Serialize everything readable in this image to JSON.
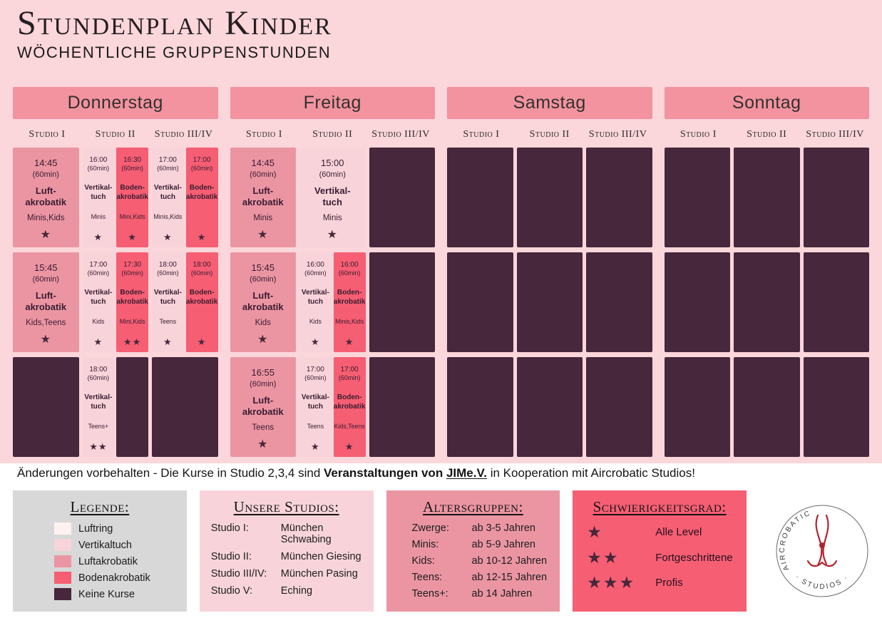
{
  "header": {
    "title": "Stundenplan Kinder",
    "subtitle": "Wöchentliche Gruppenstunden"
  },
  "colors": {
    "page_pink": "#fbd6da",
    "day_header": "#f2939f",
    "luftring": "#fdf2f0",
    "vertikaltuch": "#f8d4da",
    "luftakrobatik": "#eb95a3",
    "bodenakrobatik": "#f65e73",
    "keine_kurse": "#46273b",
    "star": "#46273b",
    "legend_bg": "#d8d8d8"
  },
  "schedule": {
    "days": [
      {
        "name": "Donnerstag",
        "studios": [
          "Studio I",
          "Studio II",
          "Studio III/IV"
        ],
        "rows": [
          {
            "slots": [
              {
                "cells": [
                  {
                    "type": "luftakrobatik",
                    "time": "14:45",
                    "duration": "(60min)",
                    "name": "Luft-\nakrobatik",
                    "group": "Minis,Kids",
                    "stars": 1
                  }
                ]
              },
              {
                "cells": [
                  {
                    "type": "vertikaltuch",
                    "time": "16:00",
                    "duration": "(60min)",
                    "name": "Vertikal-\ntuch",
                    "group": "Minis",
                    "stars": 1
                  },
                  {
                    "type": "bodenakrobatik",
                    "time": "16:30",
                    "duration": "(60min)",
                    "name": "Boden-\nakrobatik",
                    "group": "Mini,Kids",
                    "stars": 1
                  }
                ]
              },
              {
                "cells": [
                  {
                    "type": "vertikaltuch",
                    "time": "17:00",
                    "duration": "(60min)",
                    "name": "Vertikal-\ntuch",
                    "group": "Minis,Kids",
                    "stars": 1
                  },
                  {
                    "type": "bodenakrobatik",
                    "time": "17:00",
                    "duration": "(60min)",
                    "name": "Boden-\nakrobatik",
                    "group": "",
                    "stars": 1
                  }
                ]
              }
            ]
          },
          {
            "slots": [
              {
                "cells": [
                  {
                    "type": "luftakrobatik",
                    "time": "15:45",
                    "duration": "(60min)",
                    "name": "Luft-\nakrobatik",
                    "group": "Kids,Teens",
                    "stars": 1
                  }
                ]
              },
              {
                "cells": [
                  {
                    "type": "vertikaltuch",
                    "time": "17:00",
                    "duration": "(60min)",
                    "name": "Vertikal-\ntuch",
                    "group": "Kids",
                    "stars": 1
                  },
                  {
                    "type": "bodenakrobatik",
                    "time": "17:30",
                    "duration": "(60min)",
                    "name": "Boden-\nakrobatik",
                    "group": "Mini,Kids",
                    "stars": 2
                  }
                ]
              },
              {
                "cells": [
                  {
                    "type": "vertikaltuch",
                    "time": "18:00",
                    "duration": "(60min)",
                    "name": "Vertikal-\ntuch",
                    "group": "Teens",
                    "stars": 1
                  },
                  {
                    "type": "bodenakrobatik",
                    "time": "18:00",
                    "duration": "(60min)",
                    "name": "Boden-\nakrobatik",
                    "group": "",
                    "stars": 1
                  }
                ]
              }
            ]
          },
          {
            "slots": [
              {
                "cells": []
              },
              {
                "cells": [
                  {
                    "type": "vertikaltuch",
                    "time": "18:00",
                    "duration": "(60min)",
                    "name": "Vertikal-\ntuch",
                    "group": "Teens+",
                    "stars": 2
                  },
                  {
                    "empty": true
                  }
                ]
              },
              {
                "cells": []
              }
            ]
          }
        ]
      },
      {
        "name": "Freitag",
        "studios": [
          "Studio I",
          "Studio II",
          "Studio III/IV"
        ],
        "rows": [
          {
            "slots": [
              {
                "cells": [
                  {
                    "type": "luftakrobatik",
                    "time": "14:45",
                    "duration": "(60min)",
                    "name": "Luft-\nakrobatik",
                    "group": "Minis",
                    "stars": 1
                  }
                ]
              },
              {
                "cells": [
                  {
                    "type": "vertikaltuch",
                    "time": "15:00",
                    "duration": "(60min)",
                    "name": "Vertikal-\ntuch",
                    "group": "Minis",
                    "stars": 1
                  }
                ]
              },
              {
                "cells": []
              }
            ]
          },
          {
            "slots": [
              {
                "cells": [
                  {
                    "type": "luftakrobatik",
                    "time": "15:45",
                    "duration": "(60min)",
                    "name": "Luft-\nakrobatik",
                    "group": "Kids",
                    "stars": 1
                  }
                ]
              },
              {
                "cells": [
                  {
                    "type": "vertikaltuch",
                    "time": "16:00",
                    "duration": "(60min)",
                    "name": "Vertikal-\ntuch",
                    "group": "Kids",
                    "stars": 1
                  },
                  {
                    "type": "bodenakrobatik",
                    "time": "16:00",
                    "duration": "(60min)",
                    "name": "Boden-\nakrobatik",
                    "group": "Minis,Kids",
                    "stars": 1
                  }
                ]
              },
              {
                "cells": []
              }
            ]
          },
          {
            "slots": [
              {
                "cells": [
                  {
                    "type": "luftakrobatik",
                    "time": "16:55",
                    "duration": "(60min)",
                    "name": "Luft-\nakrobatik",
                    "group": "Teens",
                    "stars": 1
                  }
                ]
              },
              {
                "cells": [
                  {
                    "type": "vertikaltuch",
                    "time": "17:00",
                    "duration": "(60min)",
                    "name": "Vertikal-\ntuch",
                    "group": "Teens",
                    "stars": 1
                  },
                  {
                    "type": "bodenakrobatik",
                    "time": "17:00",
                    "duration": "(60min)",
                    "name": "Boden-\nakrobatik",
                    "group": "Kids,Teens",
                    "stars": 1
                  }
                ]
              },
              {
                "cells": []
              }
            ]
          }
        ]
      },
      {
        "name": "Samstag",
        "studios": [
          "Studio I",
          "Studio II",
          "Studio III/IV"
        ],
        "rows": [
          {
            "slots": [
              {
                "cells": []
              },
              {
                "cells": []
              },
              {
                "cells": []
              }
            ]
          },
          {
            "slots": [
              {
                "cells": []
              },
              {
                "cells": []
              },
              {
                "cells": []
              }
            ]
          },
          {
            "slots": [
              {
                "cells": []
              },
              {
                "cells": []
              },
              {
                "cells": []
              }
            ]
          }
        ]
      },
      {
        "name": "Sonntag",
        "studios": [
          "Studio I",
          "Studio II",
          "Studio III/IV"
        ],
        "rows": [
          {
            "slots": [
              {
                "cells": []
              },
              {
                "cells": []
              },
              {
                "cells": []
              }
            ]
          },
          {
            "slots": [
              {
                "cells": []
              },
              {
                "cells": []
              },
              {
                "cells": []
              }
            ]
          },
          {
            "slots": [
              {
                "cells": []
              },
              {
                "cells": []
              },
              {
                "cells": []
              }
            ]
          }
        ]
      }
    ]
  },
  "note": {
    "text_before": "Änderungen vorbehalten - Die Kurse in Studio 2,3,4 sind ",
    "bold_text": "Veranstaltungen von ",
    "underlined_text": "JIMe.V.",
    "text_after": " in Kooperation mit Aircrobatic Studios!"
  },
  "legend": {
    "title": "Legende:",
    "items": [
      {
        "label": "Luftring",
        "type": "luftring"
      },
      {
        "label": "Vertikaltuch",
        "type": "vertikaltuch"
      },
      {
        "label": "Luftakrobatik",
        "type": "luftakrobatik"
      },
      {
        "label": "Bodenakrobatik",
        "type": "bodenakrobatik"
      },
      {
        "label": "Keine Kurse",
        "type": "keine_kurse"
      }
    ]
  },
  "studios_box": {
    "title": "Unsere Studios:",
    "items": [
      {
        "label": "Studio I:",
        "value": "München Schwabing"
      },
      {
        "label": "Studio II:",
        "value": "München Giesing"
      },
      {
        "label": "Studio III/IV:",
        "value": "München Pasing"
      },
      {
        "label": "Studio V:",
        "value": "Eching"
      }
    ]
  },
  "age_groups_box": {
    "title": "Altersgruppen:",
    "items": [
      {
        "label": "Zwerge:",
        "value": "ab 3-5 Jahren"
      },
      {
        "label": "Minis:",
        "value": "ab 5-9 Jahren"
      },
      {
        "label": "Kids:",
        "value": "ab 10-12 Jahren"
      },
      {
        "label": "Teens:",
        "value": "ab 12-15 Jahren"
      },
      {
        "label": "Teens+:",
        "value": "ab 14 Jahren"
      }
    ]
  },
  "difficulty_box": {
    "title": "Schwierigkeitsgrad:",
    "items": [
      {
        "stars": 1,
        "label": "Alle Level"
      },
      {
        "stars": 2,
        "label": "Fortgeschrittene"
      },
      {
        "stars": 3,
        "label": "Profis"
      }
    ]
  },
  "logo": {
    "text_top": "AIRCROBATIC",
    "text_bottom": "· STUDIOS ·"
  }
}
